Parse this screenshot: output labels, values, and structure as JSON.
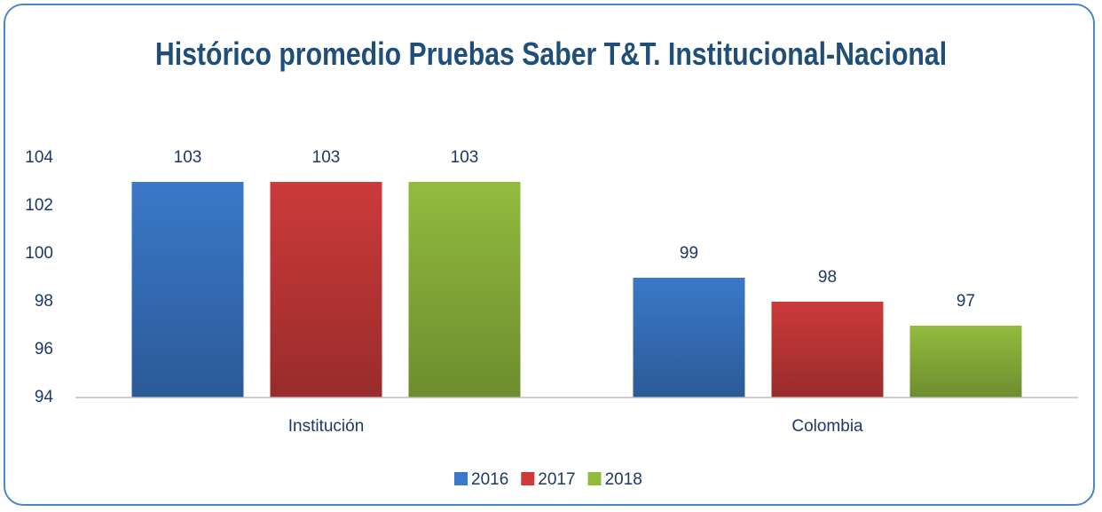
{
  "chart_data": {
    "type": "bar",
    "title": "Histórico promedio Pruebas Saber T&T. Institucional-Nacional",
    "categories": [
      "Institución",
      "Colombia"
    ],
    "series": [
      {
        "name": "2016",
        "color": "#3a78c9",
        "values": [
          103,
          99
        ]
      },
      {
        "name": "2017",
        "color": "#cc3a3a",
        "values": [
          103,
          98
        ]
      },
      {
        "name": "2018",
        "color": "#92bb3e",
        "values": [
          103,
          97
        ]
      }
    ],
    "ylim": [
      94,
      104
    ],
    "yticks": [
      94,
      96,
      98,
      100,
      102,
      104
    ],
    "grid": false,
    "legend": "bottom",
    "data_labels": true
  }
}
